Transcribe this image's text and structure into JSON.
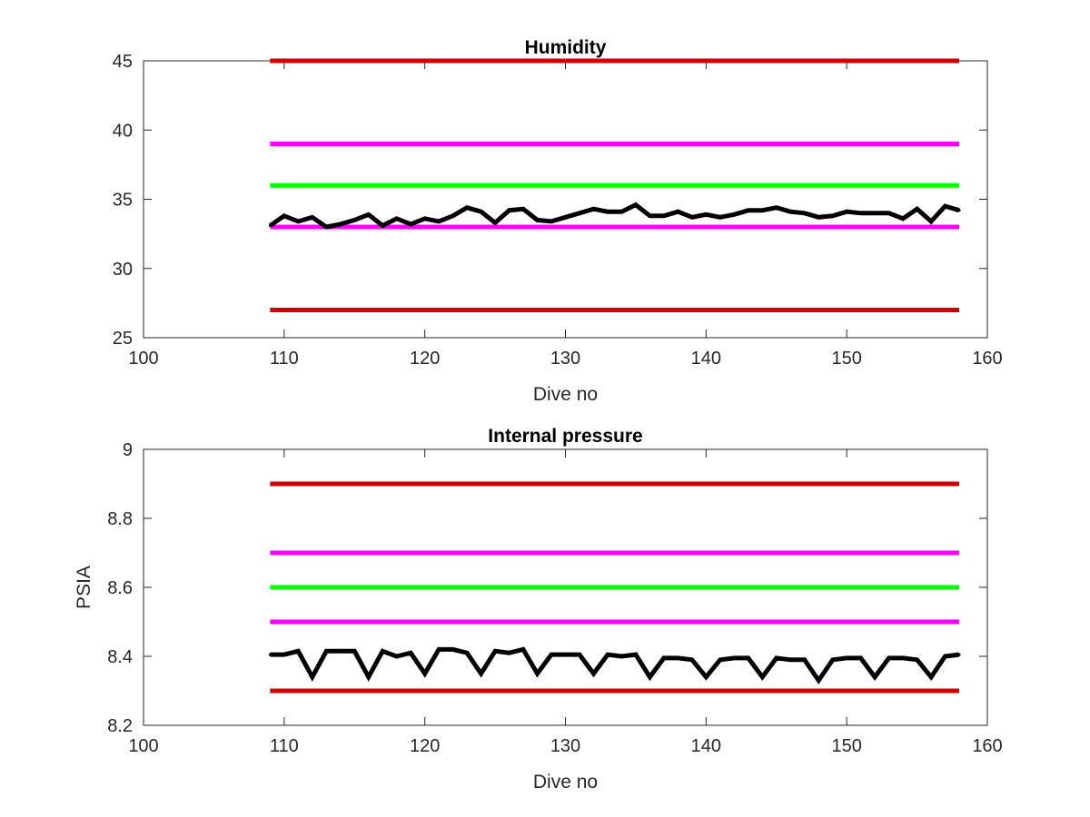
{
  "chart_data": [
    {
      "type": "line",
      "title": "Humidity",
      "xlabel": "Dive no",
      "ylabel": "",
      "xlim": [
        100,
        160
      ],
      "ylim": [
        25,
        45
      ],
      "xticks": [
        "100",
        "110",
        "120",
        "130",
        "140",
        "150",
        "160"
      ],
      "yticks": [
        "25",
        "30",
        "35",
        "40",
        "45"
      ],
      "grid": false,
      "reference_lines": [
        {
          "y": 45,
          "x": [
            109,
            158
          ],
          "color": "#d40000"
        },
        {
          "y": 39,
          "x": [
            109,
            158
          ],
          "color": "#ff00ff"
        },
        {
          "y": 36,
          "x": [
            109,
            158
          ],
          "color": "#00ff00"
        },
        {
          "y": 33,
          "x": [
            109,
            158
          ],
          "color": "#ff00ff"
        },
        {
          "y": 27,
          "x": [
            109,
            158
          ],
          "color": "#d40000"
        }
      ],
      "series": [
        {
          "color": "#000000",
          "x": [
            109,
            110,
            111,
            112,
            113,
            114,
            115,
            116,
            117,
            118,
            119,
            120,
            121,
            122,
            123,
            124,
            125,
            126,
            127,
            128,
            129,
            130,
            131,
            132,
            133,
            134,
            135,
            136,
            137,
            138,
            139,
            140,
            141,
            142,
            143,
            144,
            145,
            146,
            147,
            148,
            149,
            150,
            151,
            152,
            153,
            154,
            155,
            156,
            157,
            158
          ],
          "values": [
            33.1,
            33.8,
            33.4,
            33.7,
            33.0,
            33.2,
            33.5,
            33.9,
            33.1,
            33.6,
            33.2,
            33.6,
            33.4,
            33.8,
            34.4,
            34.1,
            33.3,
            34.2,
            34.3,
            33.5,
            33.4,
            33.7,
            34.0,
            34.3,
            34.1,
            34.1,
            34.6,
            33.8,
            33.8,
            34.1,
            33.7,
            33.9,
            33.7,
            33.9,
            34.2,
            34.2,
            34.4,
            34.1,
            34.0,
            33.7,
            33.8,
            34.1,
            34.0,
            34.0,
            34.0,
            33.6,
            34.3,
            33.4,
            34.5,
            34.2
          ]
        }
      ]
    },
    {
      "type": "line",
      "title": "Internal pressure",
      "xlabel": "Dive no",
      "ylabel": "PSIA",
      "xlim": [
        100,
        160
      ],
      "ylim": [
        8.2,
        9
      ],
      "xticks": [
        "100",
        "110",
        "120",
        "130",
        "140",
        "150",
        "160"
      ],
      "yticks": [
        "8.2",
        "8.4",
        "8.6",
        "8.8",
        "9"
      ],
      "grid": false,
      "reference_lines": [
        {
          "y": 8.9,
          "x": [
            109,
            158
          ],
          "color": "#d40000"
        },
        {
          "y": 8.7,
          "x": [
            109,
            158
          ],
          "color": "#ff00ff"
        },
        {
          "y": 8.6,
          "x": [
            109,
            158
          ],
          "color": "#00ff00"
        },
        {
          "y": 8.5,
          "x": [
            109,
            158
          ],
          "color": "#ff00ff"
        },
        {
          "y": 8.3,
          "x": [
            109,
            158
          ],
          "color": "#d40000"
        }
      ],
      "series": [
        {
          "color": "#000000",
          "x": [
            109,
            110,
            111,
            112,
            113,
            114,
            115,
            116,
            117,
            118,
            119,
            120,
            121,
            122,
            123,
            124,
            125,
            126,
            127,
            128,
            129,
            130,
            131,
            132,
            133,
            134,
            135,
            136,
            137,
            138,
            139,
            140,
            141,
            142,
            143,
            144,
            145,
            146,
            147,
            148,
            149,
            150,
            151,
            152,
            153,
            154,
            155,
            156,
            157,
            158
          ],
          "values": [
            8.405,
            8.405,
            8.415,
            8.34,
            8.415,
            8.415,
            8.415,
            8.34,
            8.415,
            8.4,
            8.41,
            8.35,
            8.42,
            8.42,
            8.41,
            8.35,
            8.415,
            8.41,
            8.42,
            8.35,
            8.405,
            8.405,
            8.405,
            8.35,
            8.405,
            8.4,
            8.405,
            8.34,
            8.395,
            8.395,
            8.39,
            8.34,
            8.39,
            8.395,
            8.395,
            8.34,
            8.395,
            8.39,
            8.39,
            8.33,
            8.39,
            8.395,
            8.395,
            8.34,
            8.395,
            8.395,
            8.39,
            8.34,
            8.4,
            8.405
          ]
        }
      ]
    }
  ]
}
